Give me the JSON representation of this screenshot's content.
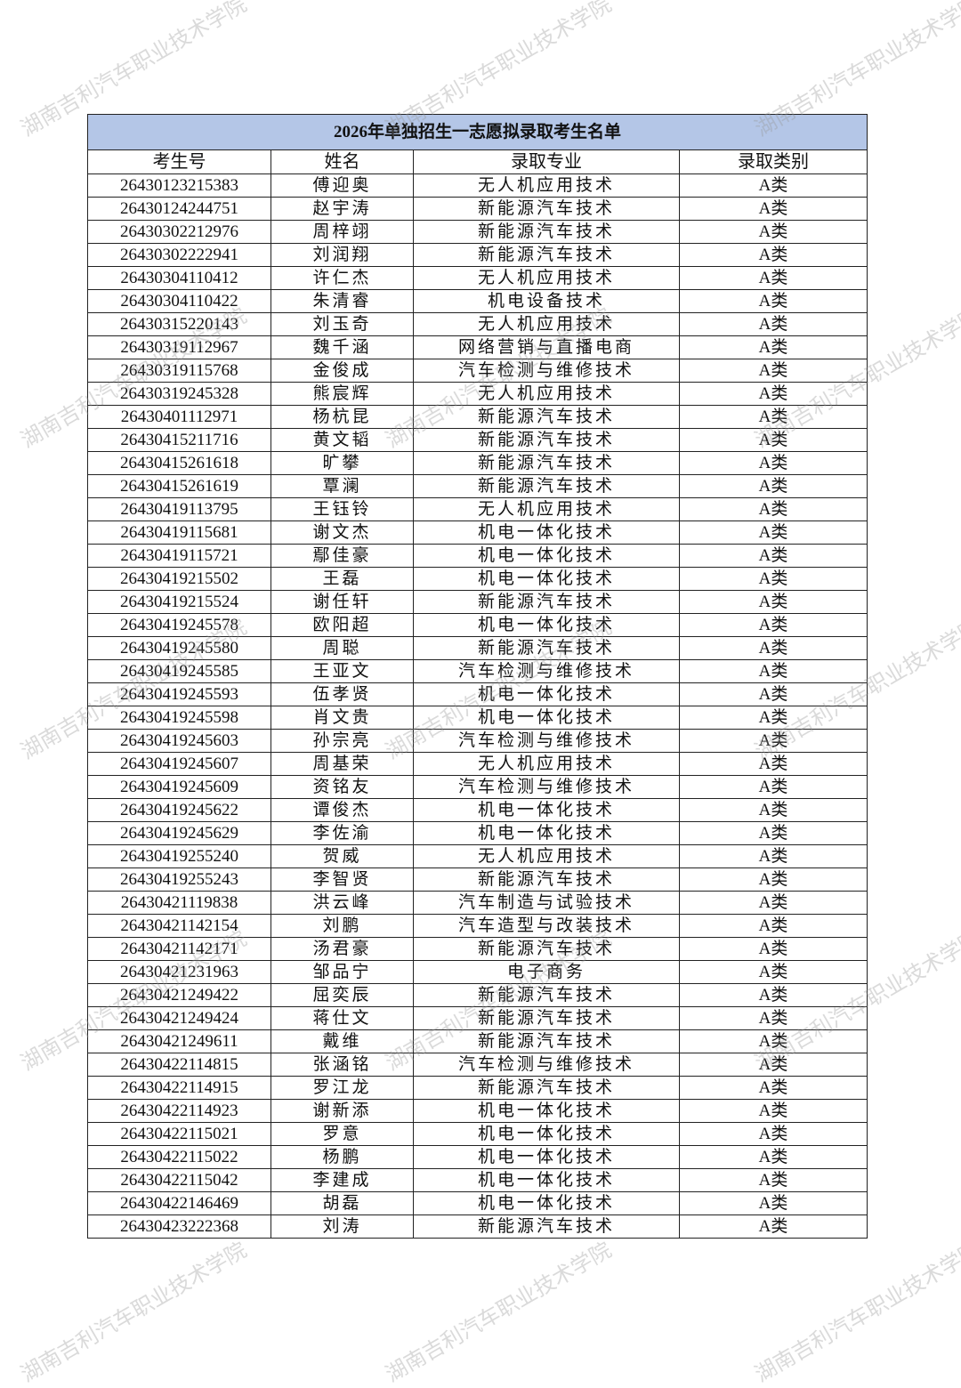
{
  "watermark": "湖南吉利汽车职业技术学院",
  "title": "2026年单独招生一志愿拟录取考生名单",
  "headers": [
    "考生号",
    "姓名",
    "录取专业",
    "录取类别"
  ],
  "colors": {
    "title_bg": "#b4c6e7",
    "border": "#222222"
  },
  "rows": [
    [
      "26430123215383",
      "傅迎奥",
      "无人机应用技术",
      "A类"
    ],
    [
      "26430124244751",
      "赵宇涛",
      "新能源汽车技术",
      "A类"
    ],
    [
      "26430302212976",
      "周梓翊",
      "新能源汽车技术",
      "A类"
    ],
    [
      "26430302222941",
      "刘润翔",
      "新能源汽车技术",
      "A类"
    ],
    [
      "26430304110412",
      "许仁杰",
      "无人机应用技术",
      "A类"
    ],
    [
      "26430304110422",
      "朱清睿",
      "机电设备技术",
      "A类"
    ],
    [
      "26430315220143",
      "刘玉奇",
      "无人机应用技术",
      "A类"
    ],
    [
      "26430319112967",
      "魏千涵",
      "网络营销与直播电商",
      "A类"
    ],
    [
      "26430319115768",
      "金俊成",
      "汽车检测与维修技术",
      "A类"
    ],
    [
      "26430319245328",
      "熊宸辉",
      "无人机应用技术",
      "A类"
    ],
    [
      "26430401112971",
      "杨杭昆",
      "新能源汽车技术",
      "A类"
    ],
    [
      "26430415211716",
      "黄文韬",
      "新能源汽车技术",
      "A类"
    ],
    [
      "26430415261618",
      "旷攀",
      "新能源汽车技术",
      "A类"
    ],
    [
      "26430415261619",
      "覃澜",
      "新能源汽车技术",
      "A类"
    ],
    [
      "26430419113795",
      "王钰铃",
      "无人机应用技术",
      "A类"
    ],
    [
      "26430419115681",
      "谢文杰",
      "机电一体化技术",
      "A类"
    ],
    [
      "26430419115721",
      "鄢佳豪",
      "机电一体化技术",
      "A类"
    ],
    [
      "26430419215502",
      "王磊",
      "机电一体化技术",
      "A类"
    ],
    [
      "26430419215524",
      "谢任轩",
      "新能源汽车技术",
      "A类"
    ],
    [
      "26430419245578",
      "欧阳超",
      "机电一体化技术",
      "A类"
    ],
    [
      "26430419245580",
      "周聪",
      "新能源汽车技术",
      "A类"
    ],
    [
      "26430419245585",
      "王亚文",
      "汽车检测与维修技术",
      "A类"
    ],
    [
      "26430419245593",
      "伍孝贤",
      "机电一体化技术",
      "A类"
    ],
    [
      "26430419245598",
      "肖文贵",
      "机电一体化技术",
      "A类"
    ],
    [
      "26430419245603",
      "孙宗亮",
      "汽车检测与维修技术",
      "A类"
    ],
    [
      "26430419245607",
      "周基荣",
      "无人机应用技术",
      "A类"
    ],
    [
      "26430419245609",
      "资铭友",
      "汽车检测与维修技术",
      "A类"
    ],
    [
      "26430419245622",
      "谭俊杰",
      "机电一体化技术",
      "A类"
    ],
    [
      "26430419245629",
      "李佐渝",
      "机电一体化技术",
      "A类"
    ],
    [
      "26430419255240",
      "贺威",
      "无人机应用技术",
      "A类"
    ],
    [
      "26430419255243",
      "李智贤",
      "新能源汽车技术",
      "A类"
    ],
    [
      "26430421119838",
      "洪云峰",
      "汽车制造与试验技术",
      "A类"
    ],
    [
      "26430421142154",
      "刘鹏",
      "汽车造型与改装技术",
      "A类"
    ],
    [
      "26430421142171",
      "汤君豪",
      "新能源汽车技术",
      "A类"
    ],
    [
      "26430421231963",
      "邹品宁",
      "电子商务",
      "A类"
    ],
    [
      "26430421249422",
      "屈奕辰",
      "新能源汽车技术",
      "A类"
    ],
    [
      "26430421249424",
      "蒋仕文",
      "新能源汽车技术",
      "A类"
    ],
    [
      "26430421249611",
      "戴维",
      "新能源汽车技术",
      "A类"
    ],
    [
      "26430422114815",
      "张涵铭",
      "汽车检测与维修技术",
      "A类"
    ],
    [
      "26430422114915",
      "罗江龙",
      "新能源汽车技术",
      "A类"
    ],
    [
      "26430422114923",
      "谢新添",
      "机电一体化技术",
      "A类"
    ],
    [
      "26430422115021",
      "罗意",
      "机电一体化技术",
      "A类"
    ],
    [
      "26430422115022",
      "杨鹏",
      "机电一体化技术",
      "A类"
    ],
    [
      "26430422115042",
      "李建成",
      "机电一体化技术",
      "A类"
    ],
    [
      "26430422146469",
      "胡磊",
      "机电一体化技术",
      "A类"
    ],
    [
      "26430423222368",
      "刘涛",
      "新能源汽车技术",
      "A类"
    ]
  ]
}
